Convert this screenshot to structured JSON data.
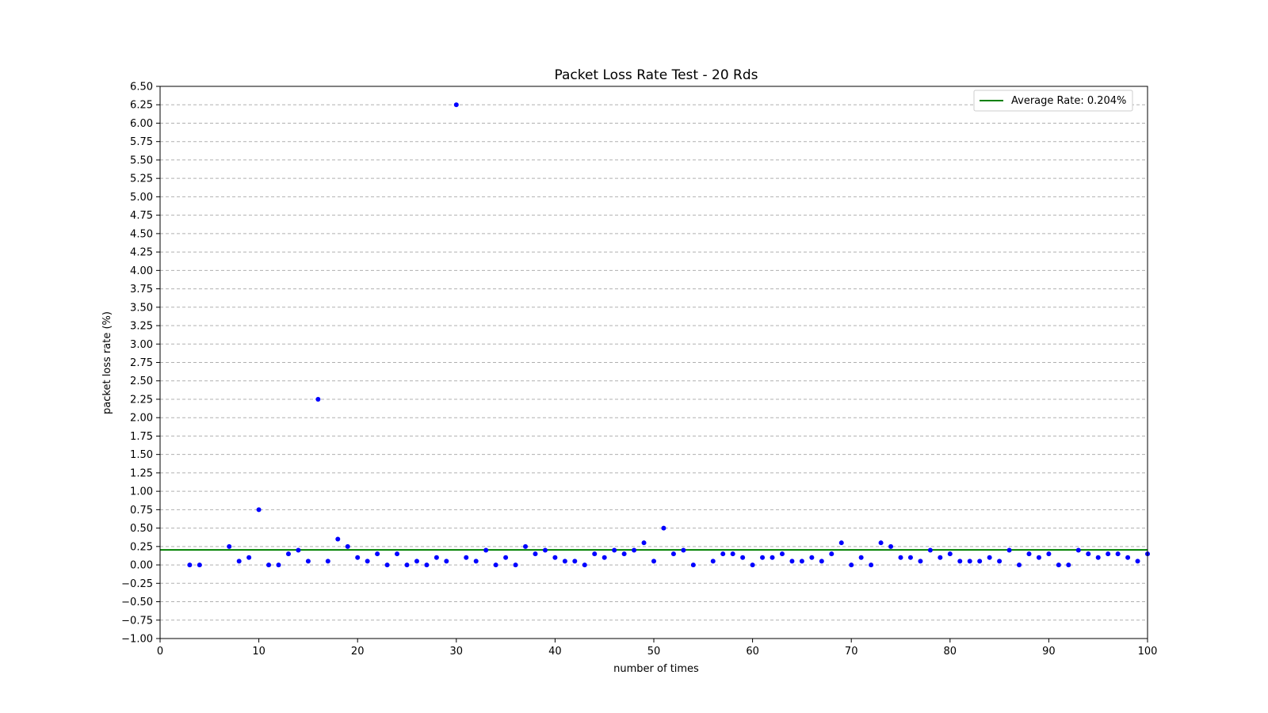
{
  "chart_data": {
    "type": "scatter",
    "title": "Packet Loss Rate Test - 20 Rds",
    "xlabel": "number of times",
    "ylabel": "packet loss rate (%)",
    "xlim": [
      0,
      100
    ],
    "ylim": [
      -1.0,
      6.5
    ],
    "xticks": [
      "0",
      "10",
      "20",
      "30",
      "40",
      "50",
      "60",
      "70",
      "80",
      "90",
      "100"
    ],
    "yticks": [
      "−1.00",
      "−0.75",
      "−0.50",
      "−0.25",
      "0.00",
      "0.25",
      "0.50",
      "0.75",
      "1.00",
      "1.25",
      "1.50",
      "1.75",
      "2.00",
      "2.25",
      "2.50",
      "2.75",
      "3.00",
      "3.25",
      "3.50",
      "3.75",
      "4.00",
      "4.25",
      "4.50",
      "4.75",
      "5.00",
      "5.25",
      "5.50",
      "5.75",
      "6.00",
      "6.25",
      "6.50"
    ],
    "grid": "horizontal dashed",
    "legend_position": "top-right",
    "colors": {
      "points": "#0000ff",
      "average_line": "#008000",
      "grid": "#b0b0b0"
    },
    "average": {
      "label": "Average Rate: 0.204%",
      "value": 0.204
    },
    "points": {
      "x": [
        3,
        4,
        7,
        8,
        9,
        10,
        11,
        12,
        13,
        14,
        15,
        16,
        17,
        18,
        19,
        20,
        21,
        22,
        23,
        24,
        25,
        26,
        27,
        28,
        29,
        30,
        31,
        32,
        33,
        34,
        35,
        36,
        37,
        38,
        39,
        40,
        41,
        42,
        43,
        44,
        45,
        46,
        47,
        48,
        49,
        50,
        51,
        52,
        53,
        54,
        56,
        57,
        58,
        59,
        60,
        61,
        62,
        63,
        64,
        65,
        66,
        67,
        68,
        69,
        70,
        71,
        72,
        73,
        74,
        75,
        76,
        77,
        78,
        79,
        80,
        81,
        82,
        83,
        84,
        85,
        86,
        87,
        88,
        89,
        90,
        91,
        92,
        93,
        94,
        95,
        96,
        97,
        98,
        99,
        100
      ],
      "y": [
        0,
        0,
        0.25,
        0.05,
        0.1,
        0.75,
        0,
        0,
        0.15,
        0.2,
        0.05,
        2.25,
        0.05,
        0.35,
        0.25,
        0.1,
        0.05,
        0.15,
        0,
        0.15,
        0,
        0.05,
        0,
        0.1,
        0.05,
        6.25,
        0.1,
        0.05,
        0.2,
        0,
        0.1,
        0,
        0.25,
        0.15,
        0.2,
        0.1,
        0.05,
        0.05,
        0,
        0.15,
        0.1,
        0.2,
        0.15,
        0.2,
        0.3,
        0.05,
        0.5,
        0.15,
        0.2,
        0,
        0.05,
        0.15,
        0.15,
        0.1,
        0,
        0.1,
        0.1,
        0.15,
        0.05,
        0.05,
        0.1,
        0.05,
        0.15,
        0.3,
        0,
        0.1,
        0,
        0.3,
        0.25,
        0.1,
        0.1,
        0.05,
        0.2,
        0.1,
        0.15,
        0.05,
        0.05,
        0.05,
        0.1,
        0.05,
        0.2,
        0,
        0.15,
        0.1,
        0.15,
        0,
        0,
        0.2,
        0.15,
        0.1,
        0.15,
        0.15,
        0.1,
        0.05,
        0.15
      ]
    }
  }
}
